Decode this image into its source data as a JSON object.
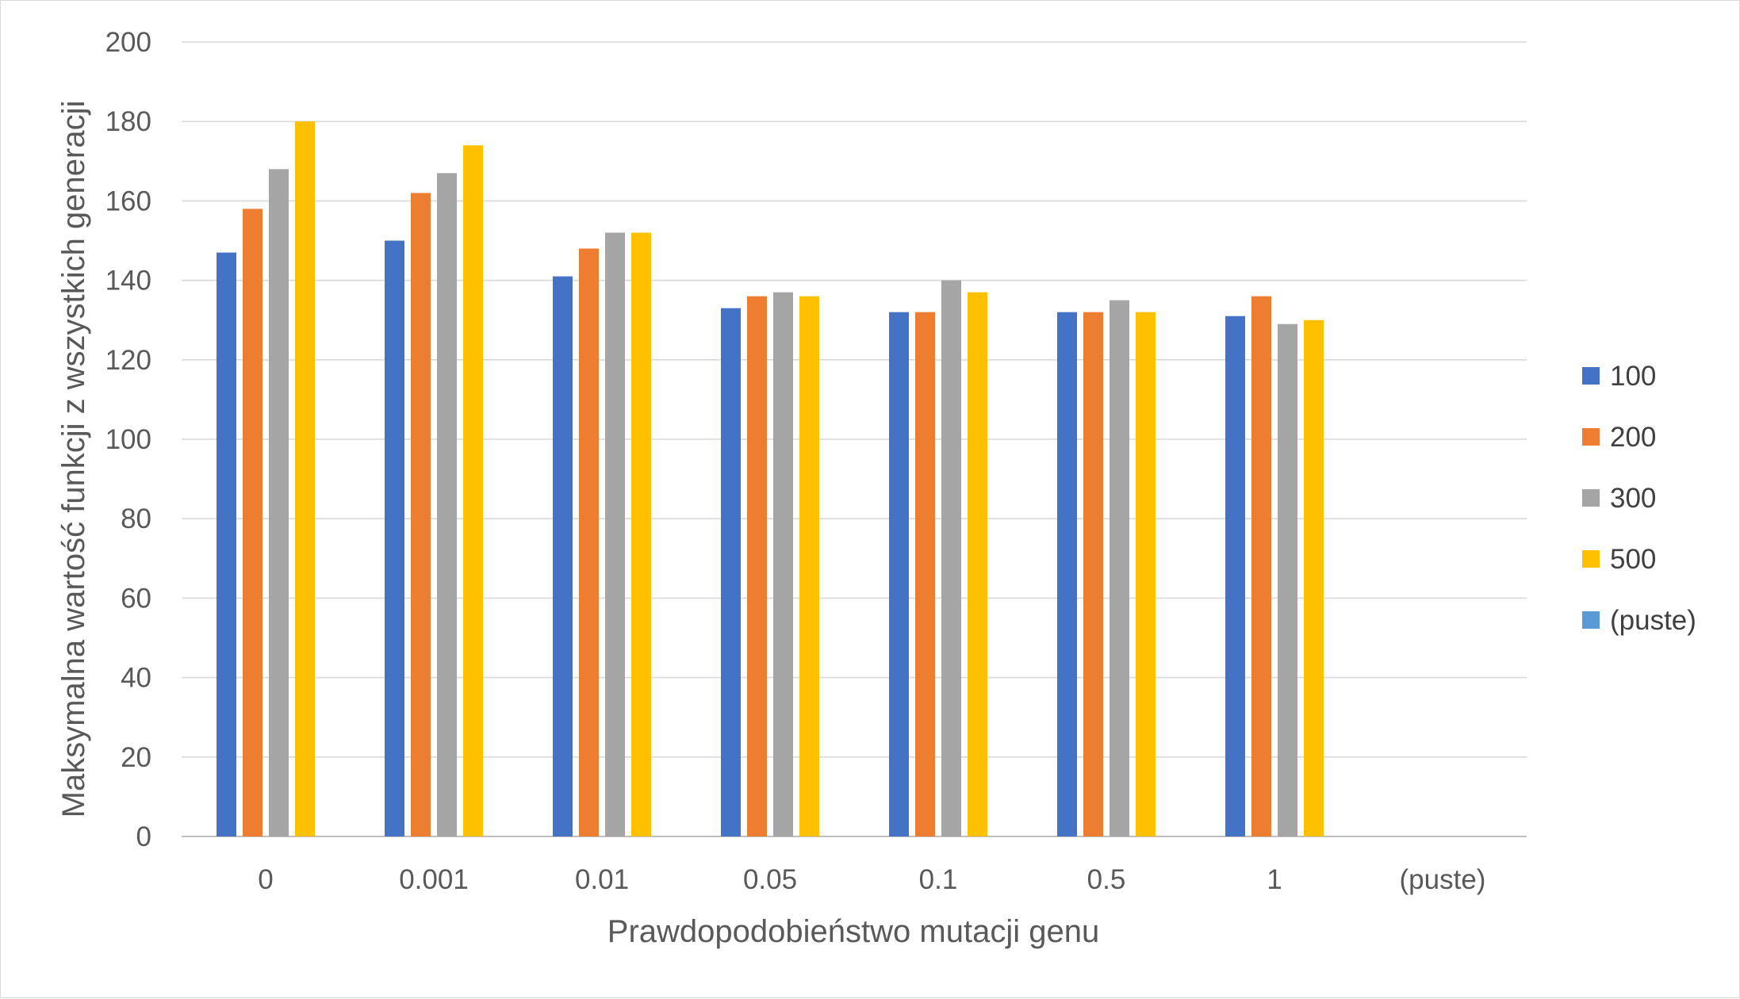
{
  "chart_data": {
    "type": "bar",
    "title": "",
    "xlabel": "Prawdopodobieństwo mutacji genu",
    "ylabel": "Maksymalna wartość funkcji z wszystkich generacji",
    "ylim": [
      0,
      200
    ],
    "ytick_step": 20,
    "grid": true,
    "legend_position": "right",
    "categories": [
      "0",
      "0.001",
      "0.01",
      "0.05",
      "0.1",
      "0.5",
      "1",
      "(puste)"
    ],
    "series": [
      {
        "name": "100",
        "color": "#4472C4",
        "values": [
          147,
          150,
          141,
          133,
          132,
          132,
          131,
          null
        ]
      },
      {
        "name": "200",
        "color": "#ED7D31",
        "values": [
          158,
          162,
          148,
          136,
          132,
          132,
          136,
          null
        ]
      },
      {
        "name": "300",
        "color": "#A5A5A5",
        "values": [
          168,
          167,
          152,
          137,
          140,
          135,
          129,
          null
        ]
      },
      {
        "name": "500",
        "color": "#FFC000",
        "values": [
          180,
          174,
          152,
          136,
          137,
          132,
          130,
          null
        ]
      },
      {
        "name": "(puste)",
        "color": "#5B9BD5",
        "values": [
          null,
          null,
          null,
          null,
          null,
          null,
          null,
          null
        ]
      }
    ]
  }
}
